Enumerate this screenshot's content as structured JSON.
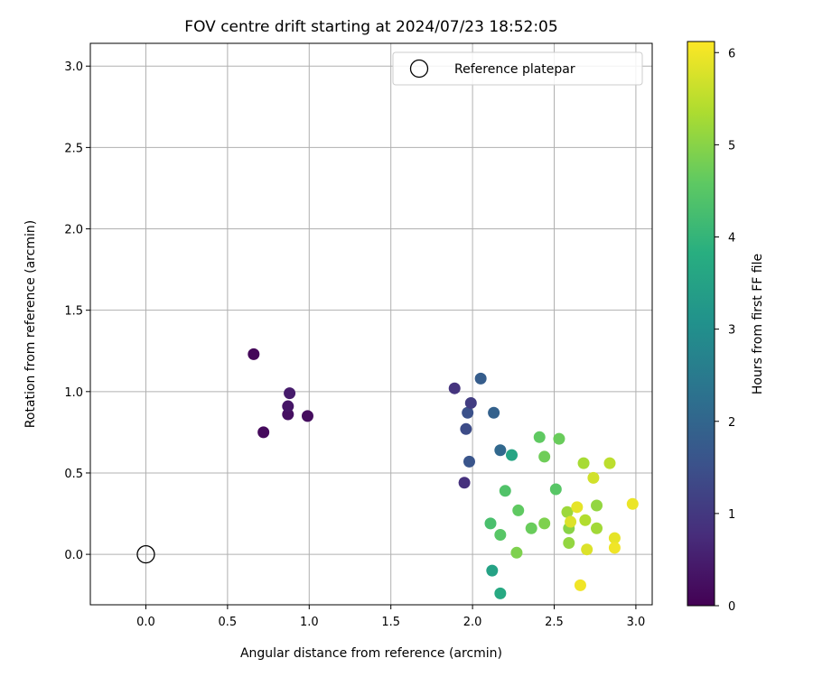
{
  "chart_data": {
    "type": "scatter",
    "title": "FOV centre drift starting at 2024/07/23 18:52:05",
    "xlabel": "Angular distance from reference (arcmin)",
    "ylabel": "Rotation from reference (arcmin)",
    "xlim": [
      -0.34,
      3.1
    ],
    "ylim": [
      -0.31,
      3.14
    ],
    "xticks": [
      "0.0",
      "0.5",
      "1.0",
      "1.5",
      "2.0",
      "2.5",
      "3.0"
    ],
    "yticks": [
      "0.0",
      "0.5",
      "1.0",
      "1.5",
      "2.0",
      "2.5",
      "3.0"
    ],
    "grid": true,
    "legend": {
      "position": "top-right",
      "label": "Reference platepar"
    },
    "reference_point": {
      "x": 0.0,
      "y": 0.0
    },
    "colorbar": {
      "label": "Hours from first FF file",
      "colormap": "viridis",
      "range": [
        0,
        6.12
      ],
      "ticks": [
        "0",
        "1",
        "2",
        "3",
        "4",
        "5",
        "6"
      ]
    },
    "points": [
      {
        "x": 0.66,
        "y": 1.23,
        "c": 0.1
      },
      {
        "x": 0.72,
        "y": 0.75,
        "c": 0.15
      },
      {
        "x": 0.87,
        "y": 0.86,
        "c": 0.25
      },
      {
        "x": 0.87,
        "y": 0.91,
        "c": 0.35
      },
      {
        "x": 0.88,
        "y": 0.99,
        "c": 0.45
      },
      {
        "x": 0.99,
        "y": 0.85,
        "c": 0.2
      },
      {
        "x": 1.89,
        "y": 1.02,
        "c": 0.9
      },
      {
        "x": 1.95,
        "y": 0.44,
        "c": 0.85
      },
      {
        "x": 1.96,
        "y": 0.77,
        "c": 1.4
      },
      {
        "x": 1.97,
        "y": 0.87,
        "c": 1.5
      },
      {
        "x": 1.98,
        "y": 0.57,
        "c": 1.6
      },
      {
        "x": 1.99,
        "y": 0.93,
        "c": 1.1
      },
      {
        "x": 2.05,
        "y": 1.08,
        "c": 1.8
      },
      {
        "x": 2.13,
        "y": 0.87,
        "c": 1.9
      },
      {
        "x": 2.17,
        "y": 0.64,
        "c": 2.05
      },
      {
        "x": 2.24,
        "y": 0.61,
        "c": 3.6
      },
      {
        "x": 2.12,
        "y": -0.1,
        "c": 3.5
      },
      {
        "x": 2.17,
        "y": -0.24,
        "c": 3.7
      },
      {
        "x": 2.11,
        "y": 0.19,
        "c": 4.3
      },
      {
        "x": 2.17,
        "y": 0.12,
        "c": 4.5
      },
      {
        "x": 2.2,
        "y": 0.39,
        "c": 4.4
      },
      {
        "x": 2.27,
        "y": 0.01,
        "c": 4.9
      },
      {
        "x": 2.28,
        "y": 0.27,
        "c": 4.6
      },
      {
        "x": 2.36,
        "y": 0.16,
        "c": 4.7
      },
      {
        "x": 2.41,
        "y": 0.72,
        "c": 4.6
      },
      {
        "x": 2.44,
        "y": 0.19,
        "c": 4.9
      },
      {
        "x": 2.44,
        "y": 0.6,
        "c": 4.75
      },
      {
        "x": 2.51,
        "y": 0.4,
        "c": 4.5
      },
      {
        "x": 2.53,
        "y": 0.71,
        "c": 4.7
      },
      {
        "x": 2.58,
        "y": 0.26,
        "c": 5.2
      },
      {
        "x": 2.59,
        "y": 0.16,
        "c": 5.0
      },
      {
        "x": 2.59,
        "y": 0.07,
        "c": 5.1
      },
      {
        "x": 2.6,
        "y": 0.2,
        "c": 5.8
      },
      {
        "x": 2.64,
        "y": 0.29,
        "c": 5.9
      },
      {
        "x": 2.66,
        "y": -0.19,
        "c": 6.0
      },
      {
        "x": 2.68,
        "y": 0.56,
        "c": 5.3
      },
      {
        "x": 2.69,
        "y": 0.21,
        "c": 5.4
      },
      {
        "x": 2.7,
        "y": 0.03,
        "c": 5.8
      },
      {
        "x": 2.74,
        "y": 0.47,
        "c": 5.7
      },
      {
        "x": 2.76,
        "y": 0.3,
        "c": 5.1
      },
      {
        "x": 2.76,
        "y": 0.16,
        "c": 5.25
      },
      {
        "x": 2.84,
        "y": 0.56,
        "c": 5.5
      },
      {
        "x": 2.87,
        "y": 0.1,
        "c": 5.9
      },
      {
        "x": 2.87,
        "y": 0.04,
        "c": 6.0
      },
      {
        "x": 2.98,
        "y": 0.31,
        "c": 5.95
      }
    ]
  }
}
